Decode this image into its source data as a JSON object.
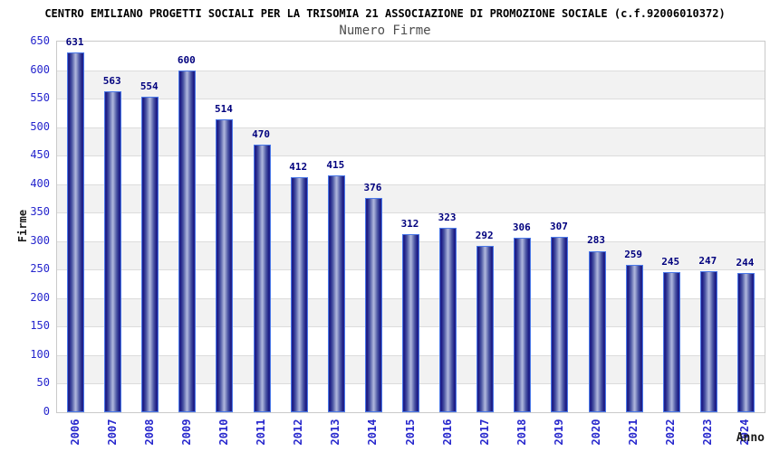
{
  "header": {
    "title": "CENTRO EMILIANO PROGETTI SOCIALI PER LA TRISOMIA 21 ASSOCIAZIONE DI PROMOZIONE SOCIALE (c.f.92006010372)",
    "subtitle": "Numero Firme"
  },
  "chart_data": {
    "type": "bar",
    "title": "Numero Firme",
    "xlabel": "Anno",
    "ylabel": "Firme",
    "categories": [
      "2006",
      "2007",
      "2008",
      "2009",
      "2010",
      "2011",
      "2012",
      "2013",
      "2014",
      "2015",
      "2016",
      "2017",
      "2018",
      "2019",
      "2020",
      "2021",
      "2022",
      "2023",
      "2024"
    ],
    "values": [
      631,
      563,
      554,
      600,
      514,
      470,
      412,
      415,
      376,
      312,
      323,
      292,
      306,
      307,
      283,
      259,
      245,
      247,
      244
    ],
    "ylim": [
      0,
      650
    ],
    "ytick_step": 50,
    "grid": "horizontal gridlines with alternating shaded bands",
    "legend_position": "none",
    "bar_value_labels": true
  },
  "style": {
    "bar_edge_color": "#23238e",
    "bar_center_color": "#aab2da",
    "bar_border_color": "#4a78e8",
    "value_label_color": "#00007e",
    "ytick_color": "#2525cd",
    "xtick_color": "#2727cd",
    "band_color": "#f2f2f2",
    "grid_color": "#dcdcdc",
    "plot_border_color": "#c9c9c9",
    "title_color": "#000000",
    "subtitle_color": "#4d4d4d",
    "axis_title_color": "#1a1a1a",
    "background_color": "#ffffff"
  }
}
